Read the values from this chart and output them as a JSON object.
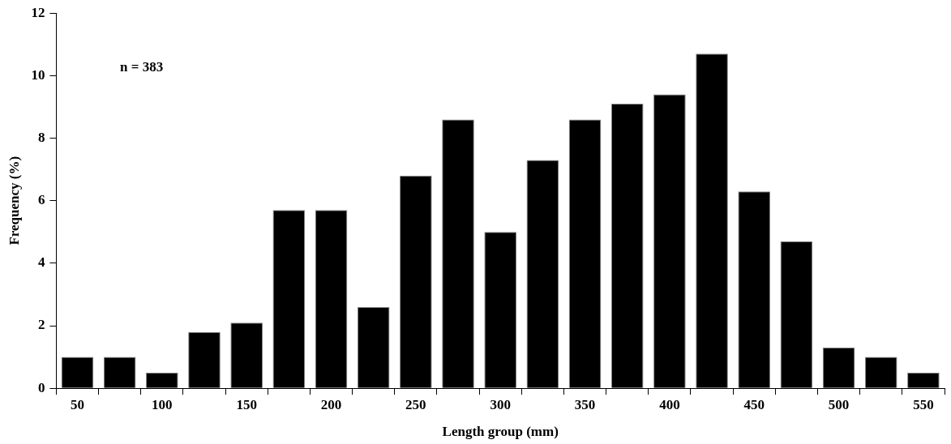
{
  "chart_data": {
    "type": "bar",
    "xlabel": "Length group (mm)",
    "ylabel": "Frequency (%)",
    "categories": [
      "50",
      null,
      "100",
      null,
      "150",
      null,
      "200",
      null,
      "250",
      null,
      "300",
      null,
      "350",
      null,
      "400",
      null,
      "450",
      null,
      "500",
      null,
      "550"
    ],
    "values": [
      1.0,
      1.0,
      0.5,
      1.8,
      2.1,
      5.7,
      5.7,
      2.6,
      6.8,
      8.6,
      5.0,
      7.3,
      8.6,
      9.1,
      9.4,
      10.7,
      6.3,
      4.7,
      1.3,
      1.0,
      0.5
    ],
    "color": "#000000",
    "ylim": [
      0,
      12
    ],
    "yticks": [
      0,
      2,
      4,
      6,
      8,
      10,
      12
    ],
    "grid": false,
    "legend": false,
    "annotations": [
      "n = 383"
    ]
  }
}
